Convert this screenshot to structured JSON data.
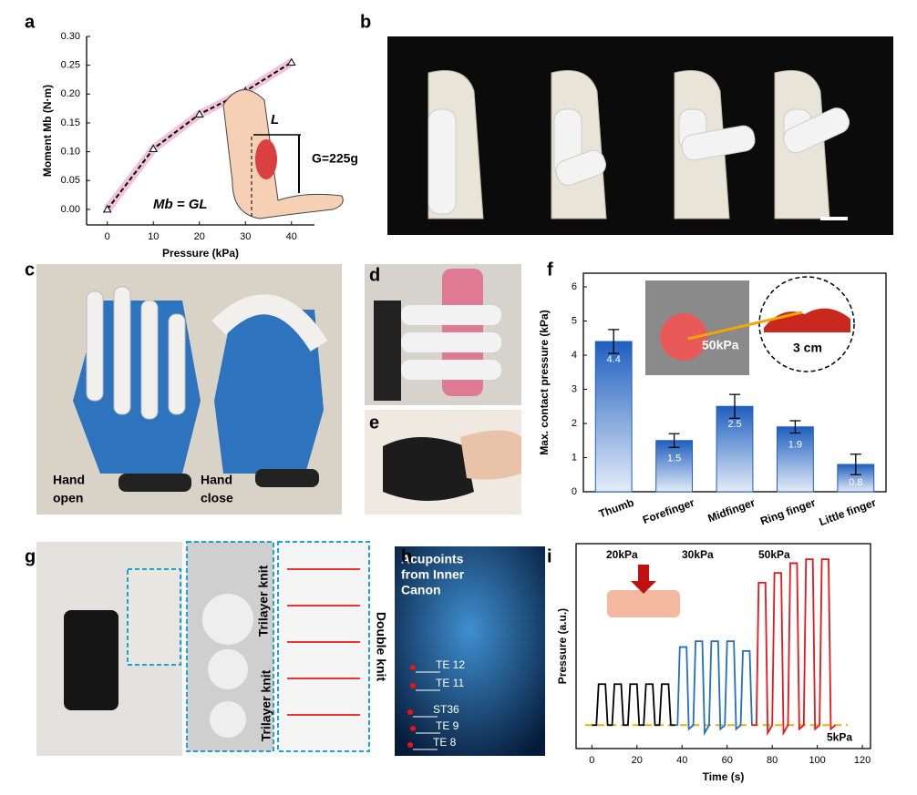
{
  "panels": {
    "labels": [
      "a",
      "b",
      "c",
      "d",
      "e",
      "f",
      "g",
      "h",
      "i"
    ],
    "panel_c": {
      "hand_open": [
        "Hand",
        "open"
      ],
      "hand_close": [
        "Hand",
        "close"
      ]
    },
    "panel_g": {
      "trilayer_top": "Trilayer knit",
      "trilayer_bottom": "Trilayer knit",
      "double": "Double knit"
    },
    "panel_h": {
      "title": [
        "Acupoints",
        "from Inner",
        "Canon"
      ],
      "points": [
        "TE 12",
        "TE 11",
        "ST36",
        "TE 9",
        "TE 8"
      ]
    }
  },
  "chart_data": [
    {
      "type": "line",
      "x": [
        0,
        10,
        20,
        30,
        40
      ],
      "values": [
        0,
        0.105,
        0.165,
        0.205,
        0.255
      ],
      "color": "#000000",
      "band_color": "#e89ac0",
      "xlim": [
        -4.5,
        45
      ],
      "xticks": [
        0,
        10,
        20,
        30,
        40
      ],
      "ylim": [
        -0.027,
        0.3
      ],
      "yticks": [
        {
          "value": 0,
          "label": "0.00"
        },
        {
          "value": 0.05,
          "label": "0.05"
        },
        {
          "value": 0.1,
          "label": "0.10"
        },
        {
          "value": 0.15,
          "label": "0.15"
        },
        {
          "value": 0.2,
          "label": "0.20"
        },
        {
          "value": 0.25,
          "label": "0.25"
        },
        {
          "value": 0.3,
          "label": "0.30"
        }
      ],
      "xlabel": "Pressure (kPa)",
      "ylabel": "Moment Mb (N·m)",
      "annotations": [
        "L",
        "G=225g",
        "Mb = GL"
      ]
    },
    {
      "type": "bar",
      "categories": [
        "Thumb",
        "Forefinger",
        "Midfinger",
        "Ring finger",
        "Little finger"
      ],
      "values": [
        4.4,
        1.5,
        2.5,
        1.9,
        0.8
      ],
      "errors": [
        0.35,
        0.2,
        0.35,
        0.18,
        0.3
      ],
      "color": "#1f5fbf",
      "ylim": [
        0,
        6.4
      ],
      "yticks": [
        0,
        1,
        2,
        3,
        4,
        5,
        6
      ],
      "ylabel": "Max. contact pressure (kPa)",
      "annotations": [
        "50kPa",
        "3 cm"
      ]
    },
    {
      "type": "line",
      "series": [
        {
          "color": "#000000",
          "x": [
            0,
            2,
            3,
            6,
            7,
            9,
            10,
            13,
            14,
            16,
            17,
            20,
            21,
            23,
            24,
            27,
            28,
            30,
            31,
            34,
            35,
            37
          ],
          "values": [
            0.12,
            0.12,
            0.33,
            0.33,
            0.12,
            0.12,
            0.33,
            0.33,
            0.12,
            0.12,
            0.33,
            0.33,
            0.12,
            0.12,
            0.33,
            0.33,
            0.12,
            0.12,
            0.33,
            0.33,
            0.12,
            0.12
          ]
        },
        {
          "color": "#1f6fc4",
          "x": [
            37,
            38,
            39,
            42,
            43,
            45,
            46,
            49,
            50,
            52,
            53,
            56,
            57,
            59,
            60,
            63,
            64,
            66,
            67,
            70,
            71
          ],
          "values": [
            0.12,
            0.12,
            0.52,
            0.52,
            0.1,
            0.12,
            0.55,
            0.55,
            0.08,
            0.12,
            0.55,
            0.55,
            0.1,
            0.12,
            0.55,
            0.55,
            0.1,
            0.12,
            0.5,
            0.5,
            0.12
          ]
        },
        {
          "color": "#e8151b",
          "x": [
            71,
            73,
            74,
            77,
            78,
            80,
            81,
            84,
            85,
            87,
            88,
            91,
            92,
            94,
            95,
            98,
            99,
            101,
            102,
            105,
            106,
            108
          ],
          "values": [
            0.12,
            0.12,
            0.85,
            0.85,
            0.08,
            0.12,
            0.9,
            0.9,
            0.08,
            0.12,
            0.95,
            0.95,
            0.1,
            0.12,
            0.97,
            0.97,
            0.1,
            0.12,
            0.97,
            0.97,
            0.1,
            0.12
          ]
        }
      ],
      "reference_line": {
        "value": 0.12,
        "label": "5kPa",
        "color": "#e8b400"
      },
      "xlim": [
        -7,
        123.6
      ],
      "xticks": [
        0,
        20,
        40,
        60,
        80,
        100,
        120
      ],
      "ylim": [
        0,
        1.05
      ],
      "xlabel": "Time (s)",
      "ylabel": "Pressure (a.u.)",
      "annotations": [
        "20kPa",
        "30kPa",
        "50kPa"
      ]
    }
  ]
}
